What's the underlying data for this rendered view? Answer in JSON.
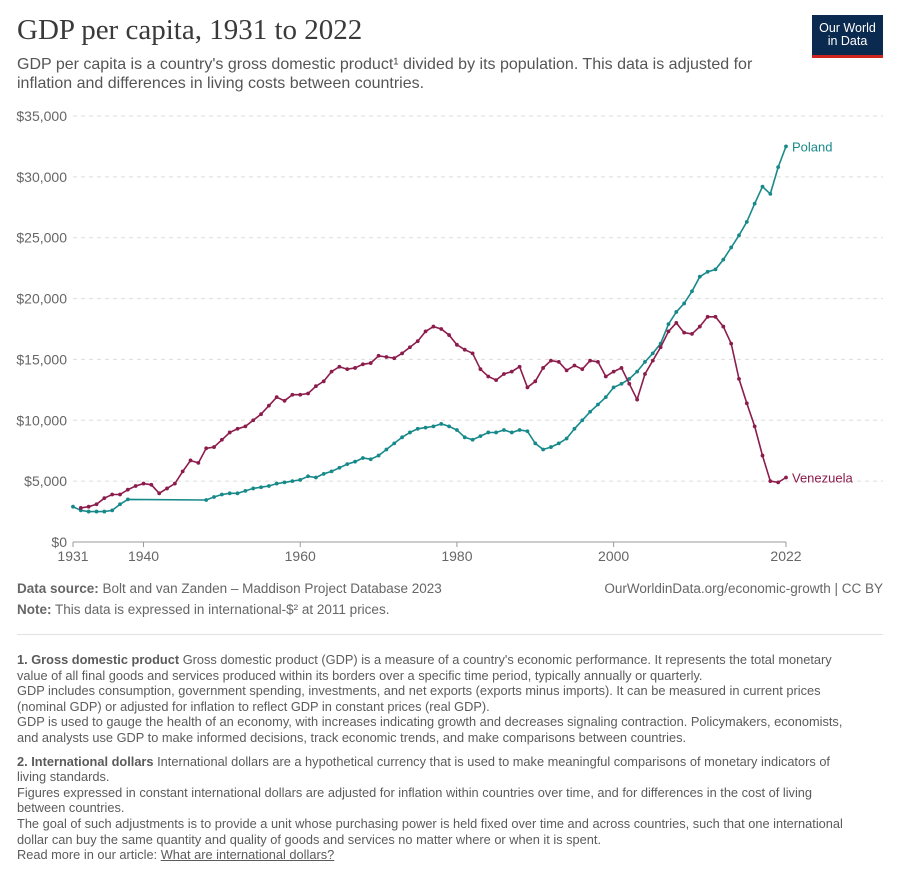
{
  "chart_data": {
    "type": "line",
    "title": "GDP per capita, 1931 to 2022",
    "subtitle": "GDP per capita is a country's gross domestic product¹ divided by its population. This data is adjusted for inflation and differences in living costs between countries.",
    "logo": "Our World in Data",
    "xlim": [
      1931,
      2022
    ],
    "xticks": [
      1931,
      1940,
      1960,
      1980,
      2000,
      2022
    ],
    "ylim": [
      0,
      35000
    ],
    "yticks": [
      {
        "value": 0,
        "label": "$0"
      },
      {
        "value": 5000,
        "label": "$5,000"
      },
      {
        "value": 10000,
        "label": "$10,000"
      },
      {
        "value": 15000,
        "label": "$15,000"
      },
      {
        "value": 20000,
        "label": "$20,000"
      },
      {
        "value": 25000,
        "label": "$25,000"
      },
      {
        "value": 30000,
        "label": "$30,000"
      },
      {
        "value": 35000,
        "label": "$35,000"
      }
    ],
    "grid": true,
    "series": [
      {
        "name": "Poland",
        "color": "#18898a",
        "x": [
          1931,
          1932,
          1933,
          1934,
          1935,
          1936,
          1937,
          1938,
          1948,
          1949,
          1950,
          1951,
          1952,
          1953,
          1954,
          1955,
          1956,
          1957,
          1958,
          1959,
          1960,
          1961,
          1962,
          1963,
          1964,
          1965,
          1966,
          1967,
          1968,
          1969,
          1970,
          1971,
          1972,
          1973,
          1974,
          1975,
          1976,
          1977,
          1978,
          1979,
          1980,
          1981,
          1982,
          1983,
          1984,
          1985,
          1986,
          1987,
          1988,
          1989,
          1990,
          1991,
          1992,
          1993,
          1994,
          1995,
          1996,
          1997,
          1998,
          1999,
          2000,
          2001,
          2002,
          2003,
          2004,
          2005,
          2006,
          2007,
          2008,
          2009,
          2010,
          2011,
          2012,
          2013,
          2014,
          2015,
          2016,
          2017,
          2018,
          2019,
          2020,
          2021,
          2022
        ],
        "values": [
          2900,
          2600,
          2500,
          2500,
          2500,
          2600,
          3100,
          3500,
          3450,
          3700,
          3900,
          4000,
          4000,
          4200,
          4400,
          4500,
          4600,
          4800,
          4900,
          5000,
          5100,
          5400,
          5300,
          5600,
          5800,
          6100,
          6400,
          6600,
          6900,
          6800,
          7100,
          7600,
          8100,
          8600,
          9000,
          9300,
          9400,
          9500,
          9700,
          9500,
          9200,
          8600,
          8400,
          8700,
          9000,
          9000,
          9200,
          9000,
          9200,
          9100,
          8100,
          7600,
          7800,
          8100,
          8500,
          9300,
          10000,
          10700,
          11300,
          11900,
          12700,
          13000,
          13400,
          14000,
          14800,
          15500,
          16300,
          17900,
          18900,
          19600,
          20600,
          21800,
          22200,
          22400,
          23200,
          24200,
          25200,
          26300,
          27800,
          29200,
          28600,
          30800,
          32500
        ]
      },
      {
        "name": "Venezuela",
        "color": "#8c1c4c",
        "x": [
          1932,
          1933,
          1934,
          1935,
          1936,
          1937,
          1938,
          1939,
          1940,
          1941,
          1942,
          1943,
          1944,
          1945,
          1946,
          1947,
          1948,
          1949,
          1950,
          1951,
          1952,
          1953,
          1954,
          1955,
          1956,
          1957,
          1958,
          1959,
          1960,
          1961,
          1962,
          1963,
          1964,
          1965,
          1966,
          1967,
          1968,
          1969,
          1970,
          1971,
          1972,
          1973,
          1974,
          1975,
          1976,
          1977,
          1978,
          1979,
          1980,
          1981,
          1982,
          1983,
          1984,
          1985,
          1986,
          1987,
          1988,
          1989,
          1990,
          1991,
          1992,
          1993,
          1994,
          1995,
          1996,
          1997,
          1998,
          1999,
          2000,
          2001,
          2002,
          2003,
          2004,
          2005,
          2006,
          2007,
          2008,
          2009,
          2010,
          2011,
          2012,
          2013,
          2014,
          2015,
          2016,
          2017,
          2018,
          2019,
          2020,
          2021,
          2022
        ],
        "values": [
          2800,
          2900,
          3100,
          3600,
          3900,
          3900,
          4300,
          4600,
          4800,
          4700,
          4000,
          4400,
          4800,
          5800,
          6700,
          6500,
          7700,
          7800,
          8400,
          9000,
          9300,
          9500,
          10000,
          10500,
          11200,
          11900,
          11600,
          12100,
          12100,
          12200,
          12800,
          13200,
          14000,
          14400,
          14200,
          14300,
          14600,
          14700,
          15300,
          15200,
          15100,
          15500,
          16000,
          16500,
          17300,
          17700,
          17500,
          17000,
          16200,
          15800,
          15500,
          14200,
          13600,
          13300,
          13800,
          14000,
          14400,
          12700,
          13200,
          14300,
          14900,
          14800,
          14100,
          14500,
          14200,
          14900,
          14800,
          13600,
          14000,
          14300,
          13000,
          11700,
          13800,
          14900,
          16000,
          17300,
          18000,
          17200,
          17100,
          17700,
          18500,
          18500,
          17700,
          16300,
          13400,
          11400,
          9500,
          7100,
          5000,
          4900,
          5300
        ]
      }
    ],
    "source_label": "Data source:",
    "source": "Bolt and van Zanden – Maddison Project Database 2023",
    "url": "OurWorldinData.org/economic-growth | CC BY",
    "note_label": "Note:",
    "note": "This data is expressed in international-$² at 2011 prices.",
    "footnotes": [
      {
        "title": "1. Gross domestic product",
        "paragraphs": [
          "Gross domestic product (GDP) is a measure of a country's economic performance. It represents the total monetary value of all final goods and services produced within its borders over a specific time period, typically annually or quarterly.",
          "GDP includes consumption, government spending, investments, and net exports (exports minus imports). It can be measured in current prices (nominal GDP) or adjusted for inflation to reflect GDP in constant prices (real GDP).",
          "GDP is used to gauge the health of an economy, with increases indicating growth and decreases signaling contraction. Policymakers, economists, and analysts use GDP to make informed decisions, track economic trends, and make comparisons between countries."
        ]
      },
      {
        "title": "2. International dollars",
        "paragraphs": [
          "International dollars are a hypothetical currency that is used to make meaningful comparisons of monetary indicators of living standards.",
          "Figures expressed in constant international dollars are adjusted for inflation within countries over time, and for differences in the cost of living between countries.",
          "The goal of such adjustments is to provide a unit whose purchasing power is held fixed over time and across countries, such that one international dollar can buy the same quantity and quality of goods and services no matter where or when it is spent."
        ],
        "read_more": "Read more in our article:",
        "link": "What are international dollars?"
      }
    ]
  }
}
